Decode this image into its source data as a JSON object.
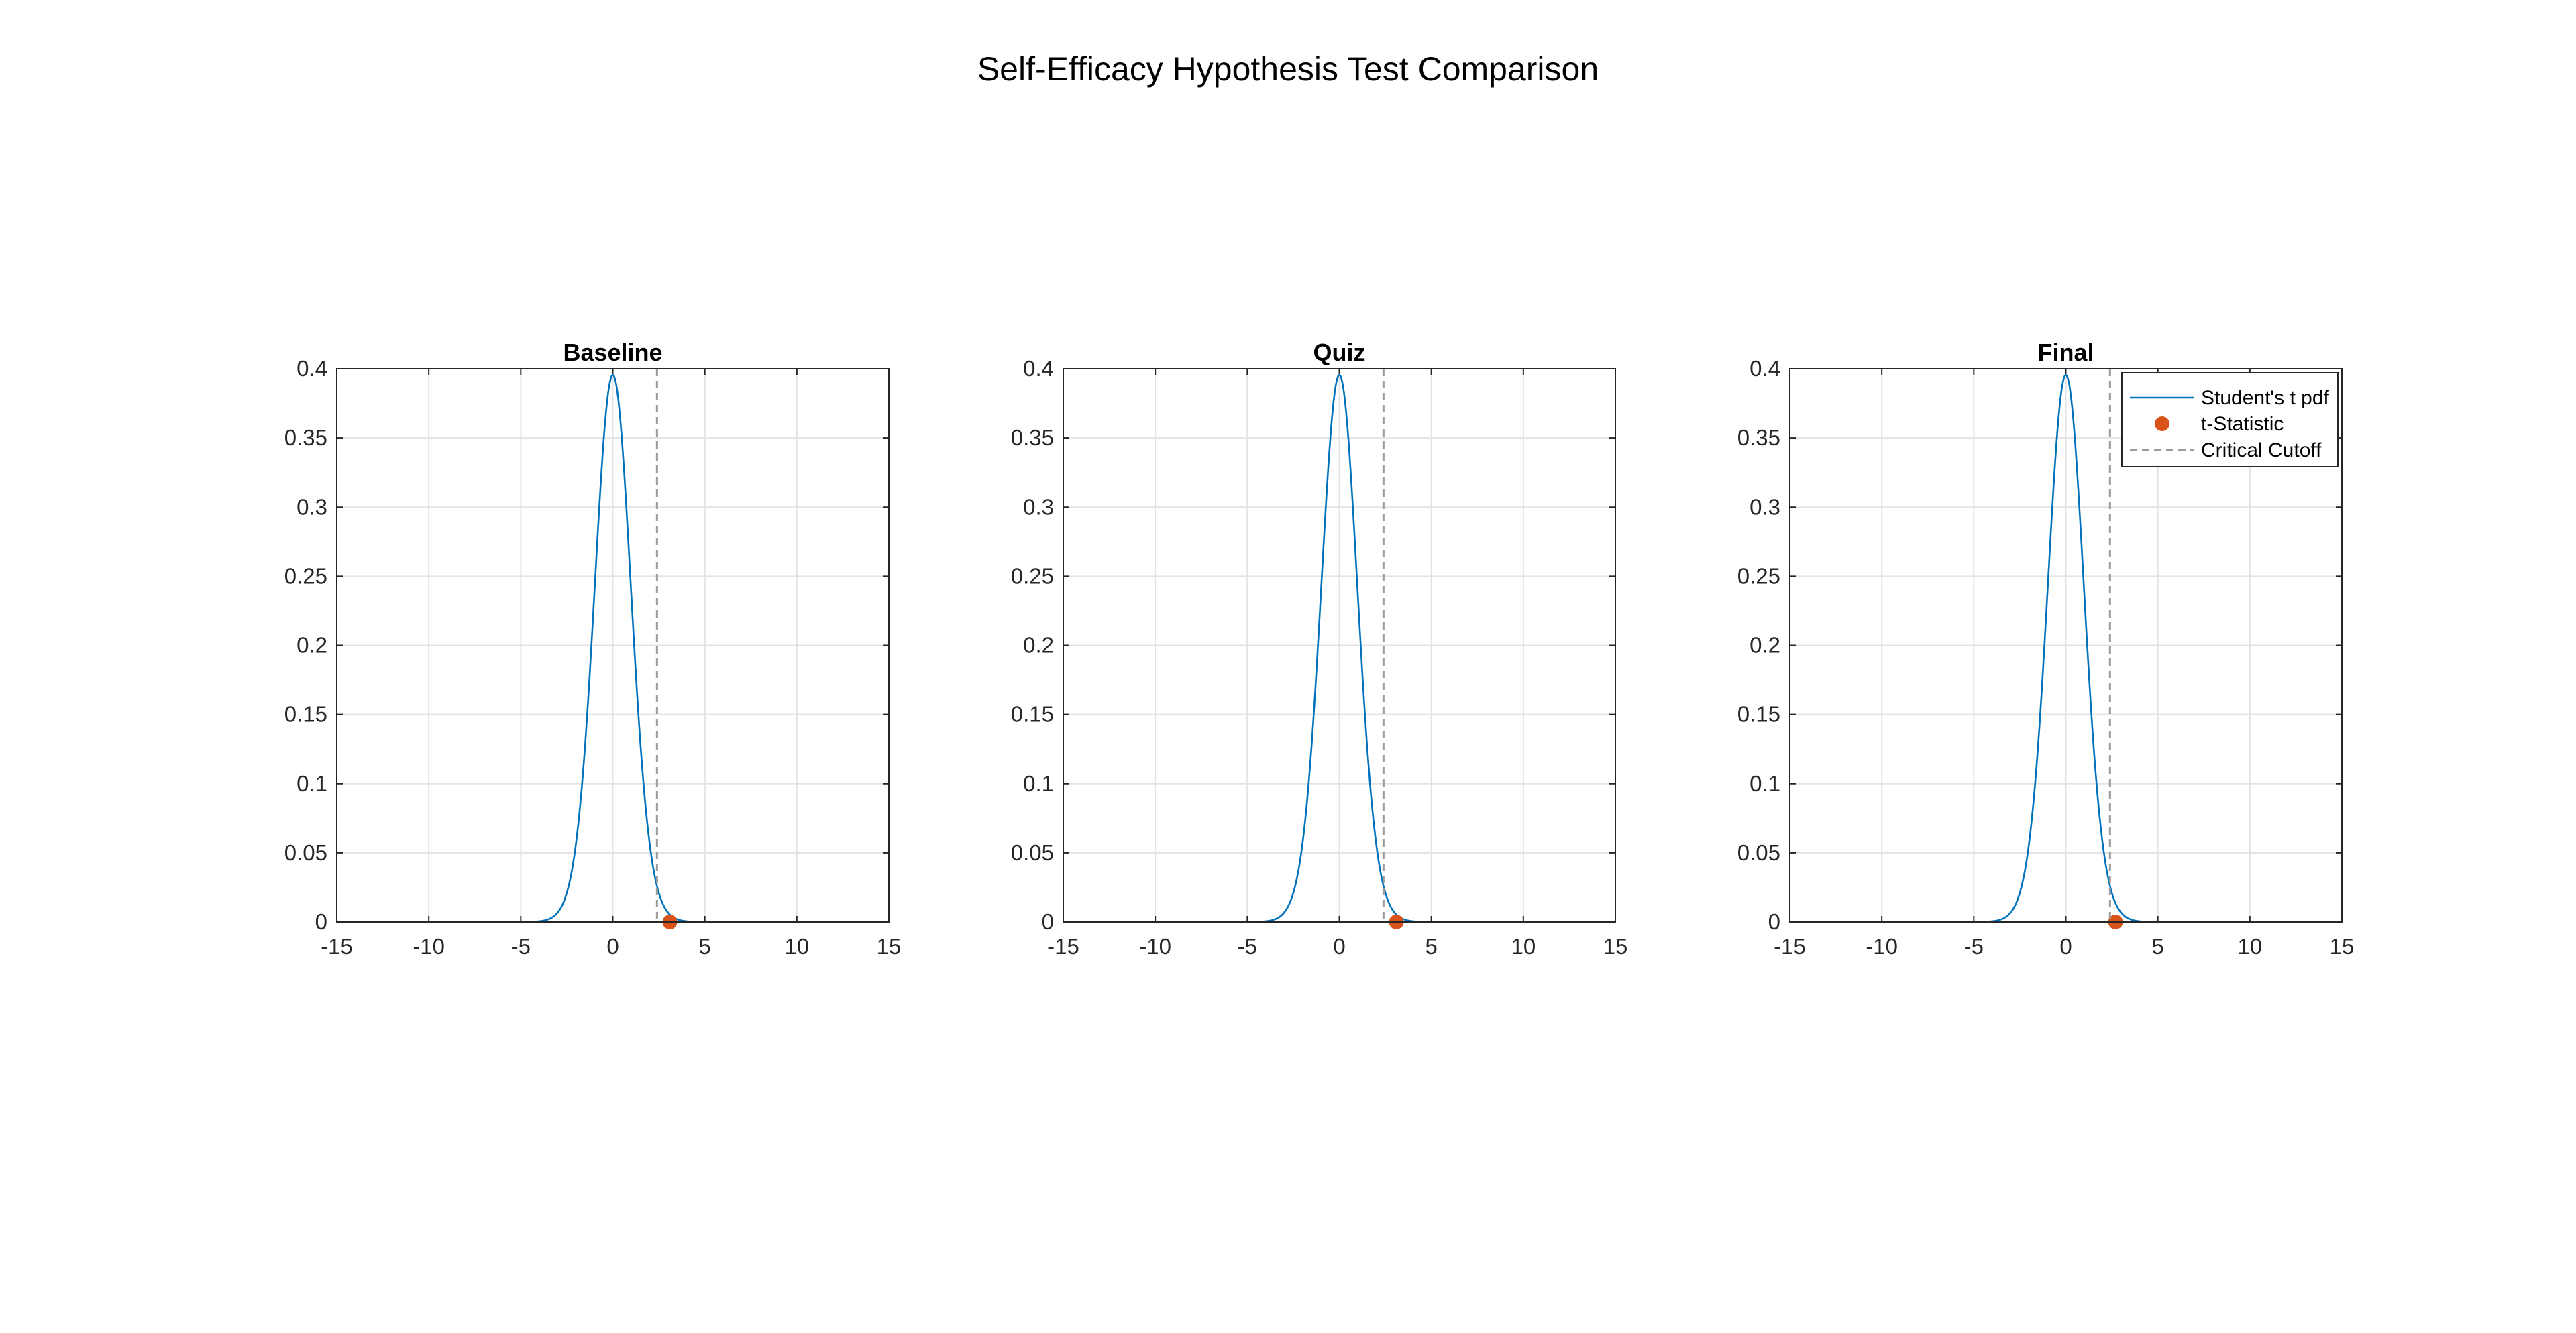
{
  "figure": {
    "title": "Self-Efficacy Hypothesis Test Comparison"
  },
  "colors": {
    "pdf_line": "#0072BD",
    "t_statistic": "#D95319",
    "critical_line": "#9b9b9b",
    "grid": "#e3e3e3",
    "axes": "#262626"
  },
  "chart_data": [
    {
      "type": "line",
      "title": "Baseline",
      "xlim": [
        -15,
        15
      ],
      "ylim": [
        0,
        0.4
      ],
      "xticks": [
        -15,
        -10,
        -5,
        0,
        5,
        10,
        15
      ],
      "yticks": [
        0,
        0.05,
        0.1,
        0.15,
        0.2,
        0.25,
        0.3,
        0.35,
        0.4
      ],
      "xtick_labels": [
        "-15",
        "-10",
        "-5",
        "0",
        "5",
        "10",
        "15"
      ],
      "ytick_labels": [
        "0",
        "0.05",
        "0.1",
        "0.15",
        "0.2",
        "0.25",
        "0.3",
        "0.35",
        "0.4"
      ],
      "grid": true,
      "series": [
        {
          "kind": "t_pdf",
          "df": 30
        },
        {
          "kind": "point",
          "x": 3.1,
          "y": 0
        },
        {
          "kind": "vline",
          "x": 2.4
        }
      ]
    },
    {
      "type": "line",
      "title": "Quiz",
      "xlim": [
        -15,
        15
      ],
      "ylim": [
        0,
        0.4
      ],
      "xticks": [
        -15,
        -10,
        -5,
        0,
        5,
        10,
        15
      ],
      "yticks": [
        0,
        0.05,
        0.1,
        0.15,
        0.2,
        0.25,
        0.3,
        0.35,
        0.4
      ],
      "xtick_labels": [
        "-15",
        "-10",
        "-5",
        "0",
        "5",
        "10",
        "15"
      ],
      "ytick_labels": [
        "0",
        "0.05",
        "0.1",
        "0.15",
        "0.2",
        "0.25",
        "0.3",
        "0.35",
        "0.4"
      ],
      "grid": true,
      "series": [
        {
          "kind": "t_pdf",
          "df": 30
        },
        {
          "kind": "point",
          "x": 3.1,
          "y": 0
        },
        {
          "kind": "vline",
          "x": 2.4
        }
      ]
    },
    {
      "type": "line",
      "title": "Final",
      "xlim": [
        -15,
        15
      ],
      "ylim": [
        0,
        0.4
      ],
      "xticks": [
        -15,
        -10,
        -5,
        0,
        5,
        10,
        15
      ],
      "yticks": [
        0,
        0.05,
        0.1,
        0.15,
        0.2,
        0.25,
        0.3,
        0.35,
        0.4
      ],
      "xtick_labels": [
        "-15",
        "-10",
        "-5",
        "0",
        "5",
        "10",
        "15"
      ],
      "ytick_labels": [
        "0",
        "0.05",
        "0.1",
        "0.15",
        "0.2",
        "0.25",
        "0.3",
        "0.35",
        "0.4"
      ],
      "grid": true,
      "legend": {
        "location": "top-right",
        "entries": [
          "Student's t pdf",
          "t-Statistic",
          "Critical Cutoff"
        ]
      },
      "series": [
        {
          "kind": "t_pdf",
          "df": 30,
          "name": "Student's t pdf"
        },
        {
          "kind": "point",
          "x": 2.7,
          "y": 0,
          "name": "t-Statistic"
        },
        {
          "kind": "vline",
          "x": 2.4,
          "name": "Critical Cutoff"
        }
      ]
    }
  ]
}
